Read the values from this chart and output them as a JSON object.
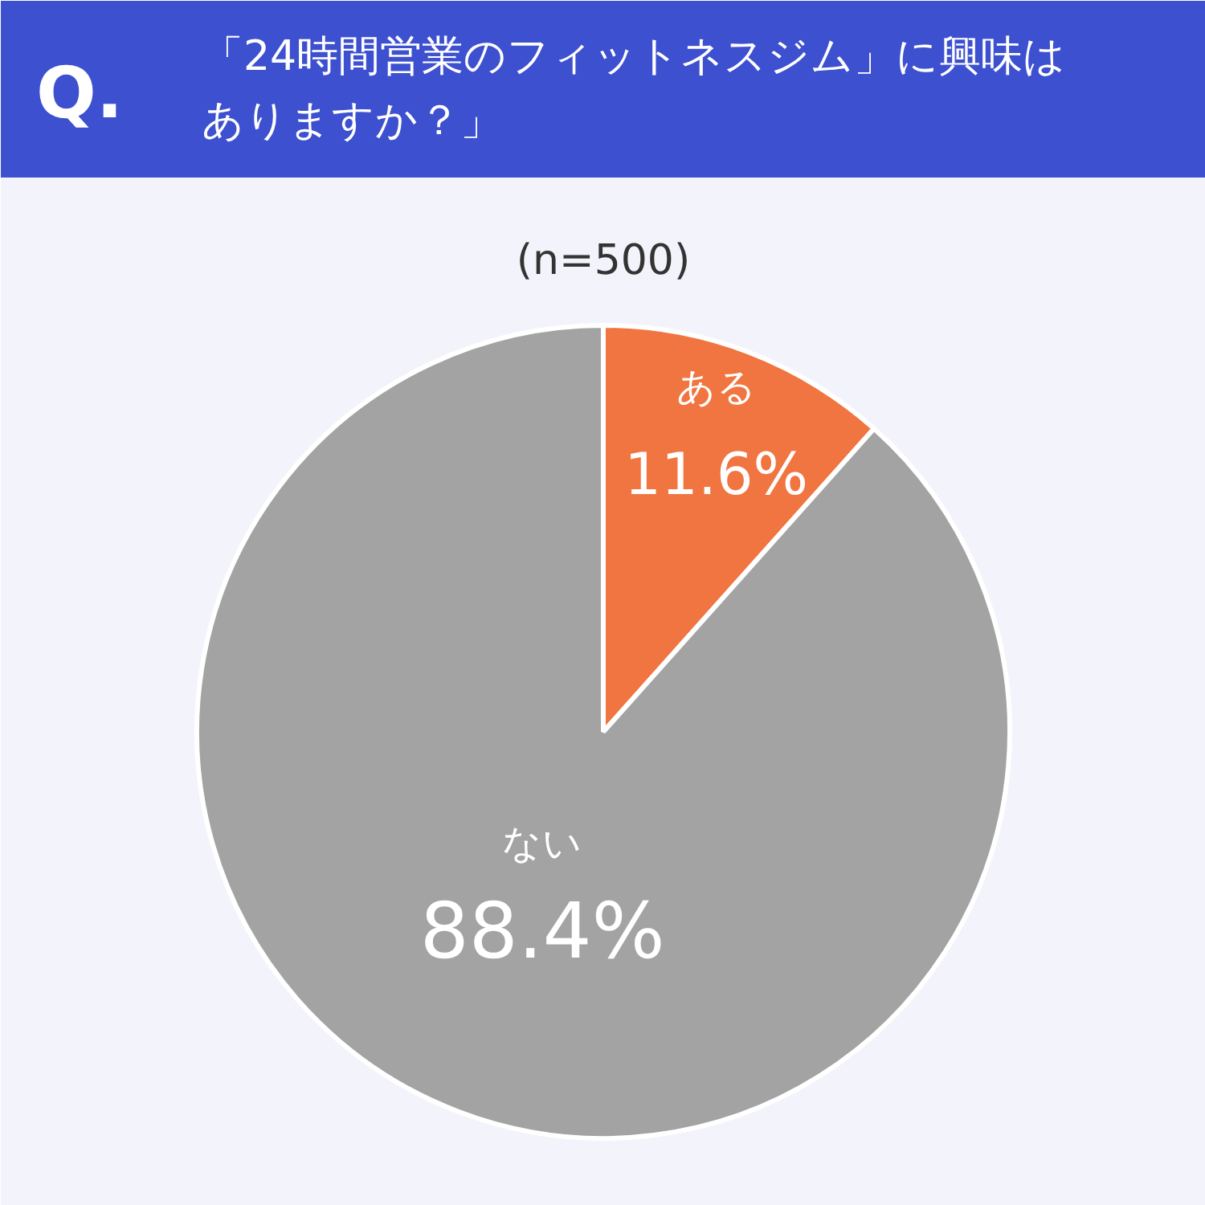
{
  "chart_data": {
    "type": "pie",
    "title": "「24時間営業のフィットネスジム」に興味はありますか？」",
    "subtitle": "(n=500)",
    "annotations": [
      "Q."
    ],
    "categories": [
      "ある",
      "ない"
    ],
    "values": [
      11.6,
      88.4
    ],
    "colors": [
      "#f07540",
      "#a3a3a3"
    ],
    "value_labels": [
      "11.6%",
      "88.4%"
    ]
  }
}
